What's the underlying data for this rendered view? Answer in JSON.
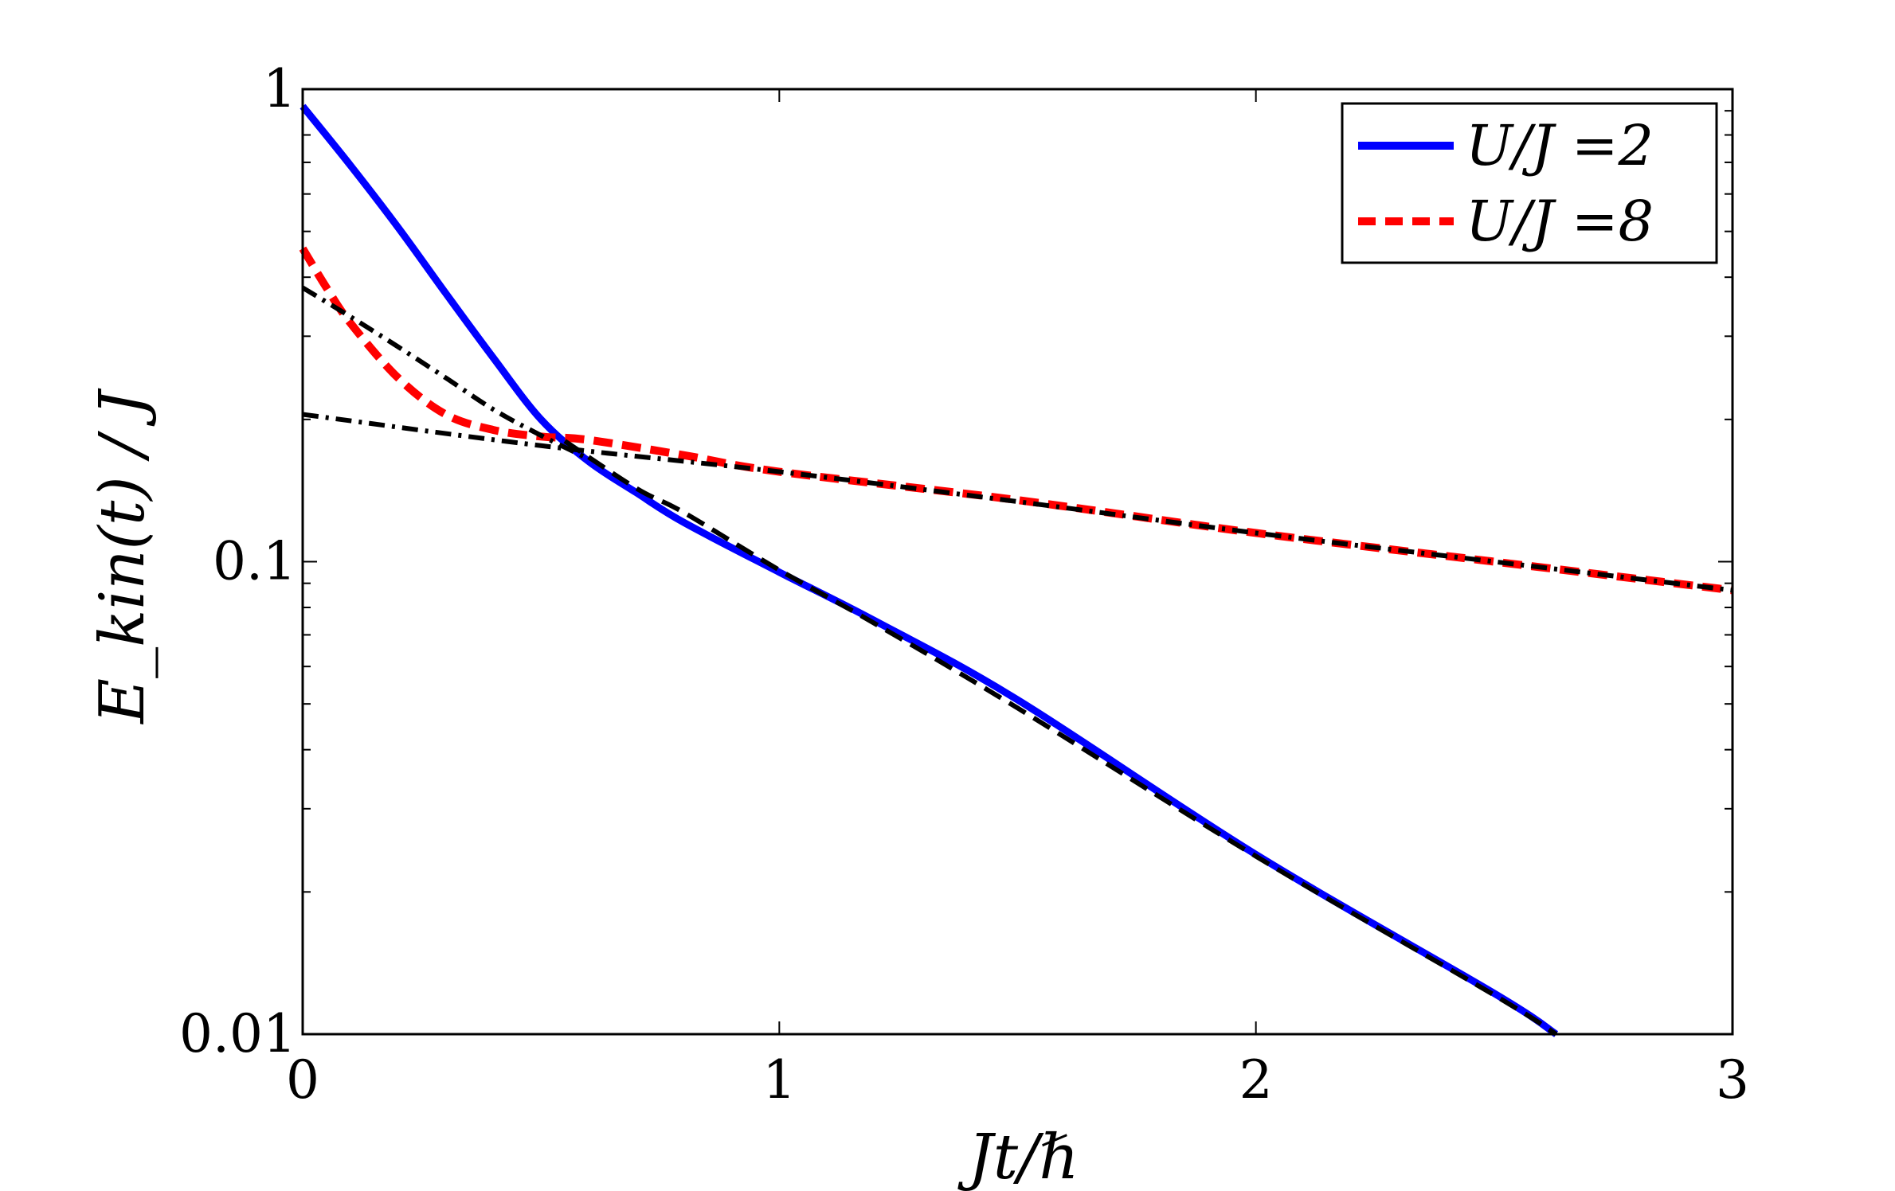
{
  "chart_data": {
    "type": "line",
    "xlabel": "Jt/ℏ",
    "ylabel": "E_kin(t) / J",
    "xlim": [
      0,
      3
    ],
    "ylim": [
      0.01,
      1
    ],
    "yscale": "log",
    "x_ticks": [
      "0",
      "1",
      "2",
      "3"
    ],
    "y_ticks": [
      "0.01",
      "0.1",
      "1"
    ],
    "grid": false,
    "legend_position": "top-right",
    "series": [
      {
        "name": "U/J =2",
        "color": "#0000ff",
        "style": "solid",
        "x": [
          0,
          0.1,
          0.2,
          0.3,
          0.4,
          0.5,
          0.6,
          0.7,
          0.8,
          1.0,
          1.2,
          1.5,
          2.0,
          2.5,
          2.63
        ],
        "y": [
          0.92,
          0.69,
          0.51,
          0.37,
          0.27,
          0.2,
          0.163,
          0.14,
          0.121,
          0.095,
          0.075,
          0.051,
          0.024,
          0.0122,
          0.01
        ]
      },
      {
        "name": "U/J =8",
        "color": "#ff0000",
        "style": "dashed",
        "x": [
          0,
          0.05,
          0.1,
          0.2,
          0.3,
          0.4,
          0.5,
          0.6,
          0.8,
          1.0,
          1.5,
          2.0,
          2.5,
          3.0
        ],
        "y": [
          0.46,
          0.38,
          0.32,
          0.245,
          0.205,
          0.19,
          0.184,
          0.181,
          0.168,
          0.155,
          0.135,
          0.115,
          0.1,
          0.087
        ]
      },
      {
        "color": "#000000",
        "style": "dash-dot",
        "x": [
          0,
          0.5,
          1.0,
          1.5,
          2.0,
          2.5,
          3.0
        ],
        "y": [
          0.205,
          0.176,
          0.155,
          0.134,
          0.115,
          0.1,
          0.087
        ]
      },
      {
        "color": "#000000",
        "style": "dash-dot",
        "x": [
          0,
          0.1,
          0.2,
          0.3,
          0.4,
          0.5,
          0.6
        ],
        "y": [
          0.38,
          0.33,
          0.285,
          0.245,
          0.21,
          0.185,
          0.165
        ]
      },
      {
        "color": "#000000",
        "style": "dashed",
        "x": [
          0.55,
          0.7,
          0.8,
          1.0,
          1.2,
          1.5,
          2.0,
          2.5,
          2.63
        ],
        "y": [
          0.18,
          0.143,
          0.127,
          0.096,
          0.074,
          0.049,
          0.0238,
          0.0121,
          0.01
        ]
      }
    ]
  }
}
